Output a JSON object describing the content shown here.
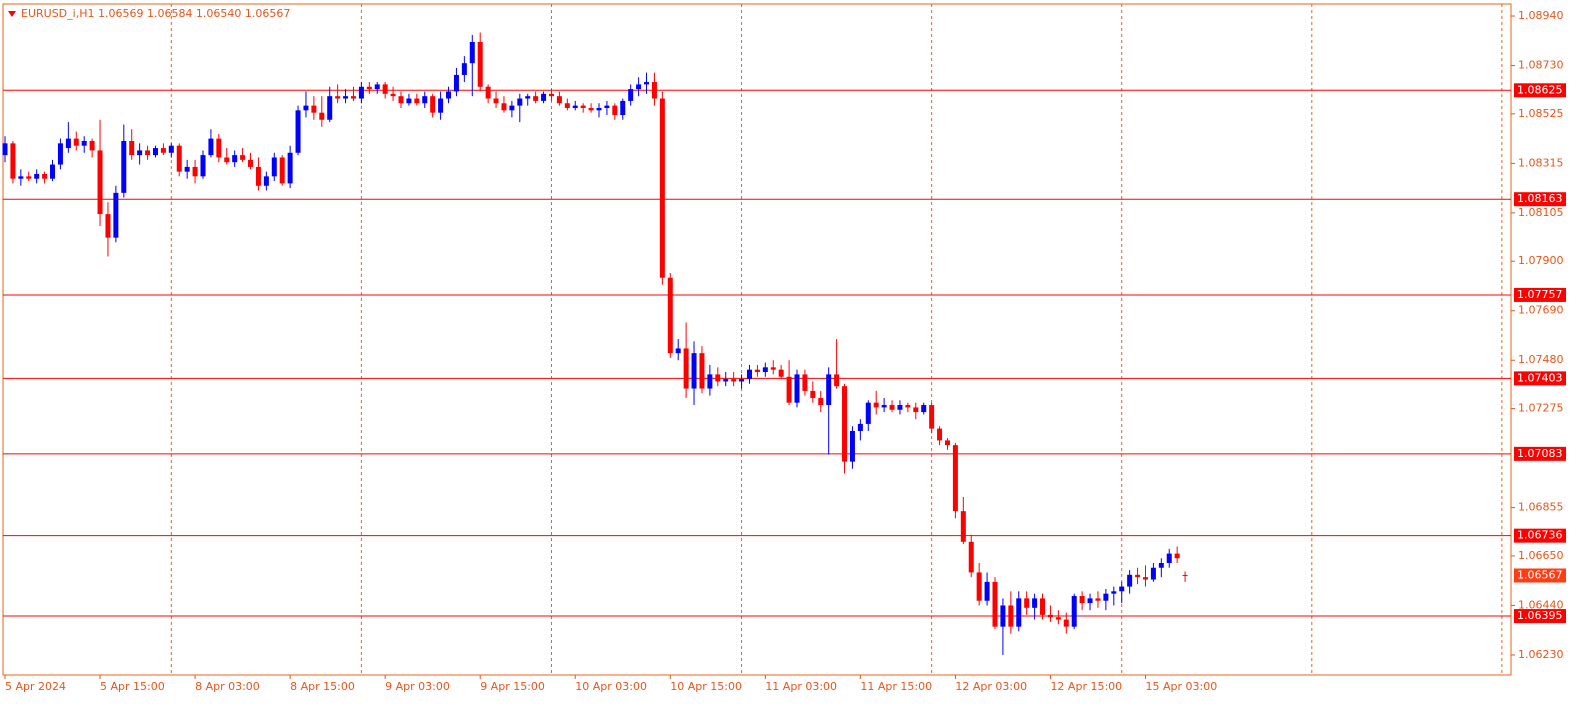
{
  "chart_data": {
    "type": "candlestick",
    "title": "EURUSD_i,H1  1.06569 1.06584 1.06540 1.06567",
    "up_color": "#0000ff",
    "down_color": "#ff0000",
    "level_color": "#ff0000",
    "categories": [
      "5 Apr 2024",
      null,
      null,
      null,
      null,
      null,
      null,
      null,
      null,
      null,
      null,
      null,
      "5 Apr 15:00",
      null,
      null,
      null,
      null,
      null,
      null,
      null,
      null,
      null,
      null,
      null,
      "8 Apr 03:00",
      null,
      null,
      null,
      null,
      null,
      null,
      null,
      null,
      null,
      null,
      null,
      "8 Apr 15:00",
      null,
      null,
      null,
      null,
      null,
      null,
      null,
      null,
      null,
      null,
      null,
      "9 Apr 03:00",
      null,
      null,
      null,
      null,
      null,
      null,
      null,
      null,
      null,
      null,
      null,
      "9 Apr 15:00",
      null,
      null,
      null,
      null,
      null,
      null,
      null,
      null,
      null,
      null,
      null,
      "10 Apr 03:00",
      null,
      null,
      null,
      null,
      null,
      null,
      null,
      null,
      null,
      null,
      null,
      "10 Apr 15:00",
      null,
      null,
      null,
      null,
      null,
      null,
      null,
      null,
      null,
      null,
      null,
      "11 Apr 03:00",
      null,
      null,
      null,
      null,
      null,
      null,
      null,
      null,
      null,
      null,
      null,
      "11 Apr 15:00",
      null,
      null,
      null,
      null,
      null,
      null,
      null,
      null,
      null,
      null,
      null,
      "12 Apr 03:00",
      null,
      null,
      null,
      null,
      null,
      null,
      null,
      null,
      null,
      null,
      null,
      "12 Apr 15:00",
      null,
      null,
      null,
      null,
      null,
      null,
      null,
      null,
      null,
      null,
      null,
      "15 Apr 03:00",
      null,
      null,
      null,
      null,
      null
    ],
    "open": [
      1.0835,
      1.084,
      1.0825,
      1.0826,
      1.0825,
      1.0827,
      1.0825,
      1.0831,
      1.0838,
      1.0842,
      1.0839,
      1.0841,
      1.0837,
      1.081,
      1.08,
      1.0819,
      1.0841,
      1.0835,
      1.0837,
      1.0835,
      1.0838,
      1.0836,
      1.0839,
      1.0828,
      1.083,
      1.0826,
      1.0835,
      1.0842,
      1.0834,
      1.0832,
      1.0835,
      1.0833,
      1.083,
      1.0822,
      1.0826,
      1.0834,
      1.0823,
      1.0836,
      1.0854,
      1.0856,
      1.0853,
      1.085,
      1.086,
      1.0859,
      1.086,
      1.0859,
      1.0864,
      1.0863,
      1.0865,
      1.0861,
      1.086,
      1.0857,
      1.0859,
      1.0857,
      1.086,
      1.0853,
      1.0859,
      1.0862,
      1.0869,
      1.0874,
      1.0883,
      1.0864,
      1.0859,
      1.0857,
      1.0854,
      1.0856,
      1.0859,
      1.086,
      1.0858,
      1.0861,
      1.086,
      1.0857,
      1.0855,
      1.0856,
      1.0855,
      1.0854,
      1.0855,
      1.0856,
      1.0852,
      1.0858,
      1.0863,
      1.0865,
      1.0866,
      1.0859,
      1.0783,
      1.0751,
      1.0753,
      1.0736,
      1.0751,
      1.0736,
      1.0742,
      1.0739,
      1.074,
      1.0739,
      1.074,
      1.0744,
      1.0743,
      1.0745,
      1.0744,
      1.0741,
      1.073,
      1.0742,
      1.0735,
      1.0732,
      1.0729,
      1.0742,
      1.0737,
      1.0705,
      1.0718,
      1.0721,
      1.073,
      1.0728,
      1.0729,
      1.0727,
      1.0729,
      1.0728,
      1.0726,
      1.0729,
      1.0719,
      1.0714,
      1.0712,
      1.0684,
      1.0671,
      1.0658,
      1.0646,
      1.0654,
      1.0635,
      1.0644,
      1.0635,
      1.0647,
      1.0643,
      1.0647,
      1.064,
      1.0639,
      1.0638,
      1.0635,
      1.0648,
      1.0645,
      1.0647,
      1.0646,
      1.0649,
      1.065,
      1.0652,
      1.0657,
      1.0656,
      1.0655,
      1.066,
      1.0662,
      1.0666,
      1.06569
    ],
    "high": [
      1.0843,
      1.0841,
      1.0829,
      1.0828,
      1.0829,
      1.0828,
      1.0833,
      1.0842,
      1.0849,
      1.0845,
      1.0843,
      1.0842,
      1.085,
      1.0815,
      1.0822,
      1.0848,
      1.0846,
      1.084,
      1.0839,
      1.0839,
      1.084,
      1.084,
      1.084,
      1.0833,
      1.0833,
      1.0837,
      1.0846,
      1.0844,
      1.0838,
      1.0837,
      1.0838,
      1.0836,
      1.0834,
      1.0828,
      1.0836,
      1.0835,
      1.0839,
      1.0856,
      1.0862,
      1.086,
      1.086,
      1.0864,
      1.0865,
      1.0863,
      1.0864,
      1.0866,
      1.0866,
      1.0866,
      1.0866,
      1.0864,
      1.0862,
      1.0861,
      1.0861,
      1.0862,
      1.0861,
      1.0862,
      1.0864,
      1.0872,
      1.0877,
      1.0886,
      1.0887,
      1.0865,
      1.0862,
      1.086,
      1.0858,
      1.0861,
      1.0861,
      1.0862,
      1.0862,
      1.0863,
      1.0862,
      1.0859,
      1.0858,
      1.0857,
      1.0857,
      1.0857,
      1.0858,
      1.0857,
      1.0859,
      1.0865,
      1.0868,
      1.087,
      1.087,
      1.0862,
      1.0785,
      1.0757,
      1.0764,
      1.0756,
      1.0754,
      1.0746,
      1.0745,
      1.0743,
      1.0743,
      1.0742,
      1.0746,
      1.0746,
      1.0747,
      1.0748,
      1.0746,
      1.0748,
      1.0744,
      1.0744,
      1.0739,
      1.0735,
      1.0745,
      1.0757,
      1.0738,
      1.072,
      1.0723,
      1.0731,
      1.0735,
      1.0732,
      1.0731,
      1.0731,
      1.073,
      1.073,
      1.073,
      1.073,
      1.072,
      1.0715,
      1.0713,
      1.069,
      1.0674,
      1.0662,
      1.0658,
      1.0656,
      1.0647,
      1.065,
      1.065,
      1.065,
      1.0649,
      1.0649,
      1.0644,
      1.0642,
      1.0641,
      1.0649,
      1.065,
      1.0649,
      1.065,
      1.0651,
      1.0652,
      1.0654,
      1.0659,
      1.066,
      1.0661,
      1.0662,
      1.0664,
      1.0668,
      1.0669,
      1.06584
    ],
    "low": [
      1.0832,
      1.0823,
      1.0822,
      1.0824,
      1.0823,
      1.0823,
      1.0824,
      1.0829,
      1.0836,
      1.0837,
      1.0836,
      1.0834,
      1.0805,
      1.0792,
      1.0798,
      1.0817,
      1.0833,
      1.0831,
      1.0833,
      1.0834,
      1.0835,
      1.0834,
      1.0826,
      1.0825,
      1.0823,
      1.0825,
      1.0834,
      1.0832,
      1.0831,
      1.083,
      1.0832,
      1.0829,
      1.082,
      1.082,
      1.0824,
      1.0822,
      1.0821,
      1.0835,
      1.0851,
      1.085,
      1.0847,
      1.0849,
      1.0857,
      1.0857,
      1.0858,
      1.0857,
      1.0861,
      1.0861,
      1.0859,
      1.0858,
      1.0855,
      1.0856,
      1.0856,
      1.0855,
      1.0851,
      1.085,
      1.0857,
      1.086,
      1.0866,
      1.086,
      1.0862,
      1.0857,
      1.0855,
      1.0853,
      1.0851,
      1.0849,
      1.0856,
      1.0857,
      1.0857,
      1.0858,
      1.0856,
      1.0854,
      1.0854,
      1.0853,
      1.0853,
      1.0851,
      1.0852,
      1.085,
      1.085,
      1.0856,
      1.086,
      1.0861,
      1.0856,
      1.078,
      1.0749,
      1.0748,
      1.0732,
      1.0729,
      1.0734,
      1.0733,
      1.0737,
      1.0737,
      1.0737,
      1.0736,
      1.0738,
      1.0741,
      1.0741,
      1.0742,
      1.074,
      1.0729,
      1.0728,
      1.0733,
      1.073,
      1.0726,
      1.0708,
      1.0736,
      1.07,
      1.0702,
      1.0714,
      1.0718,
      1.0725,
      1.0726,
      1.0726,
      1.0725,
      1.0726,
      1.0723,
      1.0725,
      1.0717,
      1.0712,
      1.071,
      1.0681,
      1.067,
      1.0656,
      1.0644,
      1.0644,
      1.0634,
      1.0623,
      1.0632,
      1.0633,
      1.064,
      1.0638,
      1.0638,
      1.0637,
      1.0636,
      1.0632,
      1.0634,
      1.0642,
      1.0642,
      1.0643,
      1.0642,
      1.0644,
      1.0645,
      1.0649,
      1.0653,
      1.0652,
      1.0654,
      1.0656,
      1.066,
      1.0662,
      1.0654
    ],
    "close": [
      1.084,
      1.0825,
      1.0826,
      1.0825,
      1.0827,
      1.0825,
      1.0831,
      1.084,
      1.0842,
      1.0839,
      1.0841,
      1.0837,
      1.081,
      1.08,
      1.0819,
      1.0841,
      1.0835,
      1.0837,
      1.0835,
      1.0838,
      1.0836,
      1.0839,
      1.0828,
      1.083,
      1.0826,
      1.0835,
      1.0842,
      1.0834,
      1.0832,
      1.0835,
      1.0833,
      1.083,
      1.0822,
      1.0826,
      1.0834,
      1.0823,
      1.0836,
      1.0854,
      1.0856,
      1.0853,
      1.085,
      1.086,
      1.0859,
      1.086,
      1.0859,
      1.0864,
      1.0863,
      1.0865,
      1.0861,
      1.086,
      1.0857,
      1.0859,
      1.0857,
      1.086,
      1.0853,
      1.0859,
      1.0862,
      1.0869,
      1.0874,
      1.0883,
      1.0864,
      1.0859,
      1.0857,
      1.0854,
      1.0856,
      1.0859,
      1.086,
      1.0858,
      1.0861,
      1.086,
      1.0857,
      1.0855,
      1.0856,
      1.0855,
      1.0854,
      1.0855,
      1.0856,
      1.0852,
      1.0858,
      1.0863,
      1.0865,
      1.0866,
      1.0859,
      1.0783,
      1.0751,
      1.0753,
      1.0736,
      1.0751,
      1.0736,
      1.0742,
      1.0739,
      1.074,
      1.0739,
      1.074,
      1.0744,
      1.0743,
      1.0745,
      1.0744,
      1.0741,
      1.073,
      1.0742,
      1.0735,
      1.0732,
      1.0729,
      1.0742,
      1.0737,
      1.0705,
      1.0718,
      1.0721,
      1.073,
      1.0728,
      1.0729,
      1.0727,
      1.0729,
      1.0728,
      1.0726,
      1.0729,
      1.0719,
      1.0714,
      1.0712,
      1.0684,
      1.0671,
      1.0658,
      1.0646,
      1.0654,
      1.0635,
      1.0644,
      1.0635,
      1.0647,
      1.0643,
      1.0647,
      1.064,
      1.0639,
      1.0638,
      1.0635,
      1.0648,
      1.0645,
      1.0647,
      1.0646,
      1.0649,
      1.065,
      1.0652,
      1.0657,
      1.0656,
      1.0655,
      1.066,
      1.0662,
      1.0666,
      1.0664,
      1.06567
    ],
    "ylim": [
      1.06145,
      1.08991
    ],
    "yticks": [
      {
        "value": 1.0894,
        "label": "1.08940"
      },
      {
        "value": 1.0873,
        "label": "1.08730"
      },
      {
        "value": 1.08525,
        "label": "1.08525"
      },
      {
        "value": 1.08315,
        "label": "1.08315"
      },
      {
        "value": 1.08105,
        "label": "1.08105"
      },
      {
        "value": 1.079,
        "label": "1.07900"
      },
      {
        "value": 1.0769,
        "label": "1.07690"
      },
      {
        "value": 1.0748,
        "label": "1.07480"
      },
      {
        "value": 1.07275,
        "label": "1.07275"
      },
      {
        "value": 1.06855,
        "label": "1.06855"
      },
      {
        "value": 1.0665,
        "label": "1.06650"
      },
      {
        "value": 1.0644,
        "label": "1.06440"
      },
      {
        "value": 1.0623,
        "label": "1.06230"
      }
    ],
    "levels": [
      {
        "value": 1.08625,
        "label": "1.08625"
      },
      {
        "value": 1.08163,
        "label": "1.08163"
      },
      {
        "value": 1.07757,
        "label": "1.07757"
      },
      {
        "value": 1.07403,
        "label": "1.07403"
      },
      {
        "value": 1.07083,
        "label": "1.07083"
      },
      {
        "value": 1.06736,
        "label": "1.06736"
      },
      {
        "value": 1.06395,
        "label": "1.06395"
      }
    ],
    "current_price": {
      "value": 1.06567,
      "label": "1.06567"
    }
  }
}
